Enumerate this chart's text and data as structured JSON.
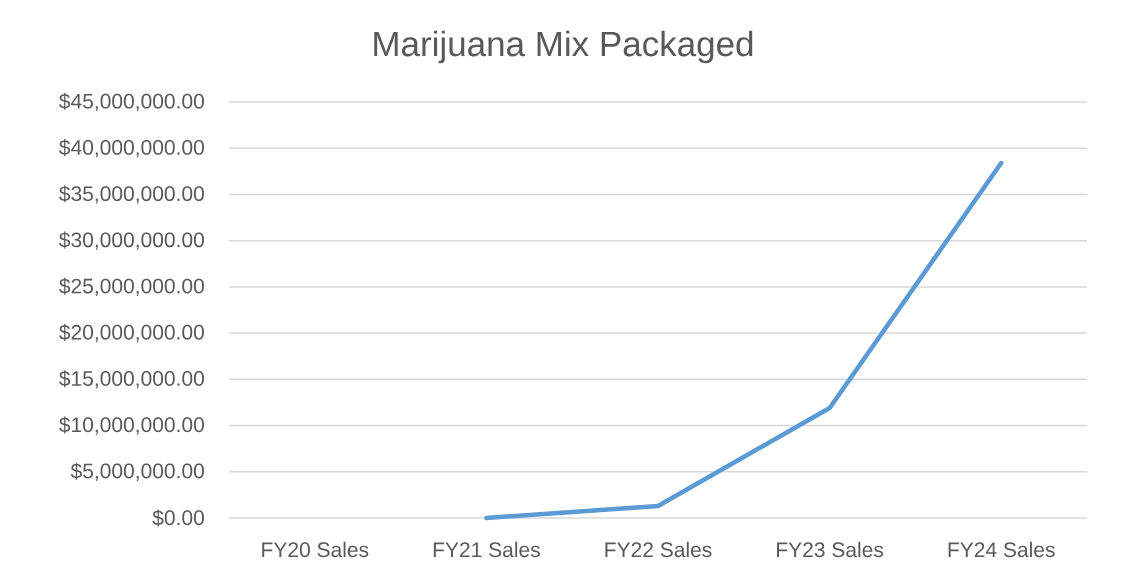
{
  "chart_data": {
    "type": "line",
    "title": "Marijuana Mix Packaged",
    "categories": [
      "FY20 Sales",
      "FY21 Sales",
      "FY22 Sales",
      "FY23 Sales",
      "FY24 Sales"
    ],
    "series": [
      {
        "color": "#5b9bd5",
        "values": [
          null,
          0,
          1300000,
          11900000,
          38400000
        ]
      }
    ],
    "ylim": [
      0,
      45000000
    ],
    "yticks": [
      {
        "value": 0,
        "label": "$0.00"
      },
      {
        "value": 5000000,
        "label": "$5,000,000.00"
      },
      {
        "value": 10000000,
        "label": "$10,000,000.00"
      },
      {
        "value": 15000000,
        "label": "$15,000,000.00"
      },
      {
        "value": 20000000,
        "label": "$20,000,000.00"
      },
      {
        "value": 25000000,
        "label": "$25,000,000.00"
      },
      {
        "value": 30000000,
        "label": "$30,000,000.00"
      },
      {
        "value": 35000000,
        "label": "$35,000,000.00"
      },
      {
        "value": 40000000,
        "label": "$40,000,000.00"
      },
      {
        "value": 45000000,
        "label": "$45,000,000.00"
      }
    ],
    "grid": "y"
  }
}
